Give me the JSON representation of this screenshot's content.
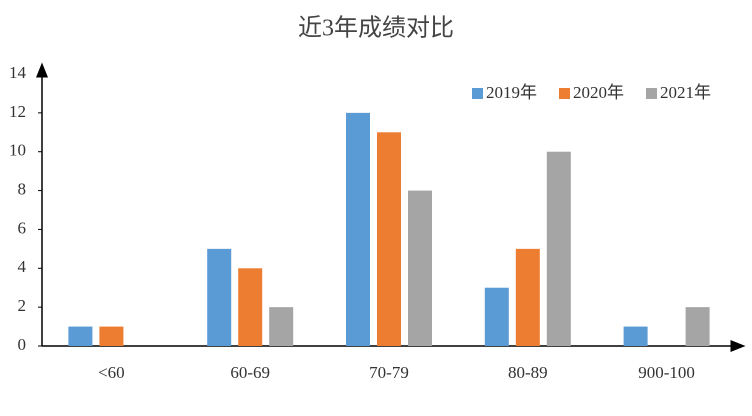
{
  "chart_data": {
    "type": "bar",
    "title": "近3年成绩对比",
    "categories": [
      "<60",
      "60-69",
      "70-79",
      "80-89",
      "900-100"
    ],
    "series": [
      {
        "name": "2019年",
        "color": "#5b9bd5",
        "values": [
          1,
          5,
          12,
          3,
          1
        ]
      },
      {
        "name": "2020年",
        "color": "#ed7d31",
        "values": [
          1,
          4,
          11,
          5,
          0
        ]
      },
      {
        "name": "2021年",
        "color": "#a5a5a5",
        "values": [
          0,
          2,
          8,
          10,
          2
        ]
      }
    ],
    "ylim": [
      0,
      14
    ],
    "yticks": [
      0,
      2,
      4,
      6,
      8,
      10,
      12,
      14
    ],
    "grid": false,
    "legend": "upper right"
  }
}
